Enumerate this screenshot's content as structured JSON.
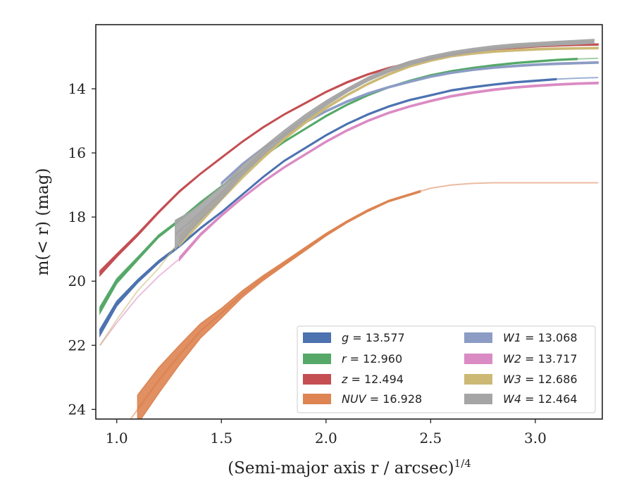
{
  "chart_data": {
    "type": "line",
    "xlabel": "(Semi-major axis r / arcsec)",
    "xlabel_exponent": "1/4",
    "ylabel": "m(< r) (mag)",
    "xlim": [
      0.9,
      3.32
    ],
    "ylim": [
      24.3,
      12.0
    ],
    "y_inverted": true,
    "xticks": [
      "1.0",
      "1.5",
      "2.0",
      "2.5",
      "3.0"
    ],
    "xtick_values": [
      1.0,
      1.5,
      2.0,
      2.5,
      3.0
    ],
    "yticks": [
      "14",
      "16",
      "18",
      "20",
      "22",
      "24"
    ],
    "ytick_values": [
      14,
      16,
      18,
      20,
      22,
      24
    ],
    "grid": false,
    "legend_placement": "lower-right",
    "legend_columns": 2,
    "series": [
      {
        "band": "g",
        "value": "13.577",
        "color": "#4c72b0",
        "x": [
          0.92,
          1.0,
          1.1,
          1.2,
          1.3,
          1.4,
          1.5,
          1.6,
          1.7,
          1.8,
          1.9,
          2.0,
          2.1,
          2.2,
          2.3,
          2.4,
          2.5,
          2.6,
          2.7,
          2.8,
          2.9,
          3.0,
          3.1,
          3.2,
          3.3
        ],
        "y": [
          21.6,
          20.7,
          20.0,
          19.4,
          18.9,
          18.35,
          17.85,
          17.3,
          16.75,
          16.25,
          15.85,
          15.45,
          15.1,
          14.8,
          14.55,
          14.35,
          14.2,
          14.05,
          13.95,
          13.87,
          13.8,
          13.75,
          13.7,
          13.67,
          13.65
        ],
        "solid_until": 3.15,
        "band_width": [
          0.2,
          0.15,
          0.1,
          0.08,
          0.06,
          0.05,
          0.04,
          0.04,
          0.04,
          0.04,
          0.04,
          0.04,
          0.04,
          0.04,
          0.04,
          0.04,
          0.04,
          0.04,
          0.04,
          0.04,
          0.04,
          0.04,
          0.04,
          0.04,
          0.04
        ]
      },
      {
        "band": "r",
        "value": "12.960",
        "color": "#55a868",
        "x": [
          0.92,
          1.0,
          1.1,
          1.2,
          1.3,
          1.4,
          1.5,
          1.6,
          1.7,
          1.8,
          1.9,
          2.0,
          2.1,
          2.2,
          2.3,
          2.4,
          2.5,
          2.6,
          2.7,
          2.8,
          2.9,
          3.0,
          3.1,
          3.2,
          3.3
        ],
        "y": [
          20.9,
          20.0,
          19.3,
          18.6,
          18.1,
          17.55,
          17.05,
          16.55,
          16.1,
          15.65,
          15.25,
          14.85,
          14.5,
          14.2,
          13.95,
          13.75,
          13.58,
          13.45,
          13.35,
          13.27,
          13.2,
          13.15,
          13.1,
          13.07,
          13.05
        ],
        "solid_until": 3.2,
        "band_width": [
          0.2,
          0.15,
          0.1,
          0.08,
          0.06,
          0.05,
          0.04,
          0.04,
          0.04,
          0.04,
          0.04,
          0.04,
          0.04,
          0.04,
          0.04,
          0.04,
          0.04,
          0.04,
          0.04,
          0.04,
          0.04,
          0.04,
          0.04,
          0.04,
          0.04
        ]
      },
      {
        "band": "z",
        "value": "12.494",
        "color": "#c44e52",
        "x": [
          0.92,
          1.0,
          1.1,
          1.2,
          1.3,
          1.4,
          1.5,
          1.6,
          1.7,
          1.8,
          1.9,
          2.0,
          2.1,
          2.2,
          2.3,
          2.4,
          2.5,
          2.6,
          2.7,
          2.8,
          2.9,
          3.0,
          3.1,
          3.2,
          3.3
        ],
        "y": [
          19.75,
          19.2,
          18.55,
          17.85,
          17.2,
          16.65,
          16.15,
          15.65,
          15.2,
          14.8,
          14.45,
          14.1,
          13.8,
          13.55,
          13.35,
          13.2,
          13.05,
          12.92,
          12.83,
          12.77,
          12.72,
          12.68,
          12.65,
          12.63,
          12.62
        ],
        "solid_until": 3.3,
        "band_width": [
          0.15,
          0.1,
          0.08,
          0.06,
          0.05,
          0.04,
          0.04,
          0.04,
          0.04,
          0.04,
          0.04,
          0.04,
          0.04,
          0.04,
          0.04,
          0.04,
          0.04,
          0.04,
          0.04,
          0.04,
          0.04,
          0.04,
          0.04,
          0.04,
          0.04
        ]
      },
      {
        "band": "NUV",
        "value": "16.928",
        "color": "#dd8452",
        "x": [
          0.92,
          1.0,
          1.1,
          1.2,
          1.3,
          1.4,
          1.5,
          1.6,
          1.7,
          1.8,
          1.9,
          2.0,
          2.1,
          2.2,
          2.3,
          2.4,
          2.45,
          2.5,
          2.6,
          2.7,
          2.8,
          2.9,
          3.0,
          3.1,
          3.2,
          3.3
        ],
        "y": [
          26.0,
          24.9,
          24.0,
          23.1,
          22.3,
          21.55,
          21.0,
          20.4,
          19.9,
          19.45,
          19.0,
          18.55,
          18.15,
          17.8,
          17.5,
          17.3,
          17.2,
          17.1,
          17.0,
          16.95,
          16.93,
          16.93,
          16.93,
          16.93,
          16.93,
          16.93
        ],
        "solid_from": 1.1,
        "solid_until": 2.45,
        "band_width": [
          0.5,
          0.5,
          0.9,
          0.8,
          0.6,
          0.45,
          0.3,
          0.2,
          0.15,
          0.12,
          0.1,
          0.08,
          0.06,
          0.06,
          0.05,
          0.05,
          0.05,
          0.04,
          0.04,
          0.04,
          0.04,
          0.04,
          0.04,
          0.04,
          0.04,
          0.04
        ]
      },
      {
        "band": "W1",
        "value": "13.068",
        "color": "#8c9cc4",
        "x": [
          1.5,
          1.6,
          1.7,
          1.8,
          1.9,
          2.0,
          2.1,
          2.2,
          2.3,
          2.4,
          2.5,
          2.6,
          2.7,
          2.8,
          2.9,
          3.0,
          3.1,
          3.2,
          3.3
        ],
        "y": [
          16.95,
          16.35,
          15.85,
          15.45,
          15.05,
          14.7,
          14.4,
          14.15,
          13.95,
          13.78,
          13.62,
          13.5,
          13.41,
          13.34,
          13.29,
          13.25,
          13.22,
          13.2,
          13.18
        ],
        "solid_until": 3.3,
        "band_width": [
          0.06,
          0.05,
          0.05,
          0.05,
          0.05,
          0.05,
          0.05,
          0.05,
          0.05,
          0.05,
          0.05,
          0.05,
          0.05,
          0.05,
          0.05,
          0.05,
          0.05,
          0.05,
          0.05
        ]
      },
      {
        "band": "W2",
        "value": "13.717",
        "color": "#da8bc3",
        "x": [
          0.92,
          1.0,
          1.1,
          1.2,
          1.3,
          1.4,
          1.5,
          1.6,
          1.7,
          1.8,
          1.9,
          2.0,
          2.1,
          2.2,
          2.3,
          2.4,
          2.5,
          2.6,
          2.7,
          2.8,
          2.9,
          3.0,
          3.1,
          3.2,
          3.3
        ],
        "y": [
          22.0,
          21.3,
          20.5,
          19.85,
          19.3,
          18.55,
          17.95,
          17.4,
          16.9,
          16.45,
          16.05,
          15.65,
          15.3,
          15.0,
          14.75,
          14.55,
          14.38,
          14.23,
          14.12,
          14.03,
          13.96,
          13.91,
          13.87,
          13.84,
          13.82
        ],
        "solid_from": 1.28,
        "solid_until": 3.3,
        "band_width": [
          0.1,
          0.1,
          0.1,
          0.1,
          0.1,
          0.08,
          0.06,
          0.05,
          0.05,
          0.05,
          0.05,
          0.05,
          0.05,
          0.05,
          0.05,
          0.05,
          0.05,
          0.05,
          0.05,
          0.05,
          0.05,
          0.05,
          0.05,
          0.05,
          0.05
        ]
      },
      {
        "band": "W3",
        "value": "12.686",
        "color": "#ccb974",
        "x": [
          0.92,
          1.0,
          1.1,
          1.2,
          1.3,
          1.4,
          1.5,
          1.6,
          1.7,
          1.8,
          1.9,
          2.0,
          2.1,
          2.2,
          2.3,
          2.4,
          2.5,
          2.6,
          2.7,
          2.8,
          2.9,
          3.0,
          3.1,
          3.2,
          3.3
        ],
        "y": [
          22.0,
          21.2,
          20.3,
          19.6,
          18.75,
          18.05,
          17.35,
          16.7,
          16.1,
          15.55,
          15.05,
          14.6,
          14.2,
          13.85,
          13.55,
          13.3,
          13.12,
          12.98,
          12.9,
          12.84,
          12.8,
          12.77,
          12.75,
          12.74,
          12.73
        ],
        "solid_from": 1.28,
        "solid_until": 3.3,
        "band_width": [
          0.1,
          0.1,
          0.1,
          0.1,
          0.3,
          0.3,
          0.25,
          0.2,
          0.15,
          0.1,
          0.08,
          0.06,
          0.05,
          0.05,
          0.05,
          0.05,
          0.05,
          0.05,
          0.05,
          0.05,
          0.05,
          0.05,
          0.05,
          0.05,
          0.05
        ]
      },
      {
        "band": "W4",
        "value": "12.464",
        "color": "#a5a5a5",
        "x": [
          1.28,
          1.35,
          1.4,
          1.5,
          1.6,
          1.7,
          1.8,
          1.9,
          2.0,
          2.1,
          2.2,
          2.3,
          2.4,
          2.5,
          2.6,
          2.7,
          2.8,
          2.9,
          3.0,
          3.1,
          3.2,
          3.28
        ],
        "y": [
          18.55,
          18.15,
          17.85,
          17.25,
          16.55,
          15.95,
          15.4,
          14.9,
          14.45,
          14.05,
          13.7,
          13.42,
          13.2,
          13.03,
          12.9,
          12.8,
          12.72,
          12.66,
          12.62,
          12.58,
          12.55,
          12.52
        ],
        "solid_until": 3.28,
        "band_width": [
          0.9,
          0.6,
          0.5,
          0.4,
          0.3,
          0.25,
          0.2,
          0.18,
          0.15,
          0.12,
          0.12,
          0.12,
          0.12,
          0.12,
          0.12,
          0.12,
          0.12,
          0.12,
          0.12,
          0.12,
          0.12,
          0.12
        ]
      }
    ]
  }
}
